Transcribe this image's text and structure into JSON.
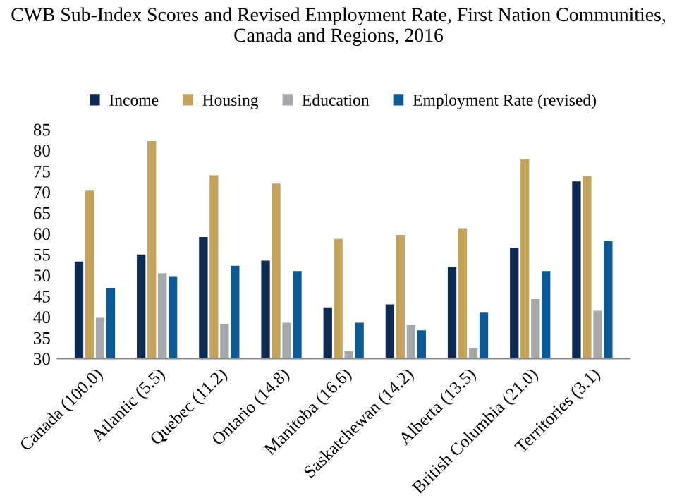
{
  "chart_data": {
    "type": "bar",
    "title": "CWB Sub-Index Scores and Revised Employment Rate, First Nation Communities, Canada and Regions, 2016",
    "categories": [
      "Canada (100.0)",
      "Atlantic (5.5)",
      "Quebec (11.2)",
      "Ontario (14.8)",
      "Manitoba (16.6)",
      "Saskatchewan (14.2)",
      "Alberta (13.5)",
      "British Columbia (21.0)",
      "Territories (3.1)"
    ],
    "series": [
      {
        "name": "Income",
        "color": "#0d2b52",
        "values": [
          53.3,
          55.0,
          59.2,
          53.5,
          42.3,
          43.0,
          52.0,
          56.6,
          72.5
        ]
      },
      {
        "name": "Housing",
        "color": "#c4a35a",
        "values": [
          70.3,
          82.2,
          74.0,
          72.0,
          58.7,
          59.7,
          61.3,
          77.8,
          73.8
        ]
      },
      {
        "name": "Education",
        "color": "#a6a8ab",
        "values": [
          39.8,
          50.5,
          38.3,
          38.6,
          31.8,
          38.0,
          32.5,
          44.3,
          41.5
        ]
      },
      {
        "name": "Employment Rate (revised)",
        "color": "#0b5a96",
        "values": [
          47.0,
          49.8,
          52.3,
          51.0,
          38.6,
          36.8,
          41.0,
          51.0,
          58.2
        ]
      }
    ],
    "ylim": [
      30,
      85
    ],
    "yticks": [
      30,
      35,
      40,
      45,
      50,
      55,
      60,
      65,
      70,
      75,
      80,
      85
    ],
    "grid": false,
    "legend": "top"
  }
}
